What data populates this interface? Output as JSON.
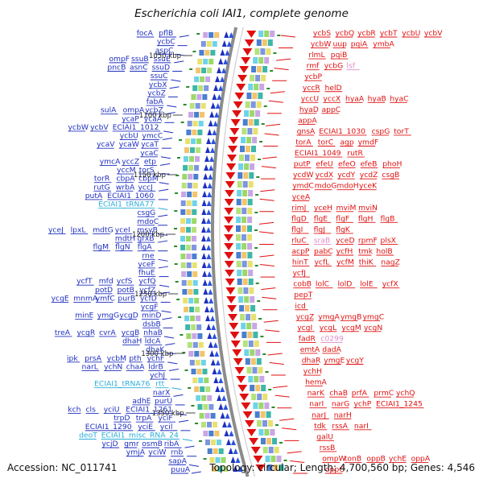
{
  "header": {
    "title": "Escherichia coli IAI1, complete genome"
  },
  "footer": {
    "accession": "Accession: NC_011741",
    "summary": "Topology: circular; Length: 4,700,560 bp; Genes: 4,546"
  },
  "colors": {
    "left_strand": "#1f2fbf",
    "right_strand": "#e01010",
    "rna": "#2aaed8",
    "pseudo": "#e08ac8",
    "backbone": "#8c8c8c"
  },
  "scale_labels": [
    "1050 kbp",
    "1100 kbp",
    "1150 kbp",
    "1200 kbp",
    "1250 kbp",
    "1300 kbp",
    "1350 kbp"
  ],
  "left_genes": [
    [
      "focA",
      "pflB"
    ],
    [
      "ycbC"
    ],
    [
      "aspC"
    ],
    [
      "ompF",
      "ssuB",
      "ssuE"
    ],
    [
      "pncB",
      "asnC",
      "ssuD"
    ],
    [
      "ssuC"
    ],
    [
      "ycbX"
    ],
    [
      "ycbZ"
    ],
    [
      "fabA"
    ],
    [
      "sulA",
      "ompA",
      "ycbZ"
    ],
    [
      "ycaP",
      "ycaA"
    ],
    [
      "ycbW",
      "ycbV",
      "ECIAI1_1012"
    ],
    [
      "ycbU",
      "ymcC"
    ],
    [
      "ycaV",
      "ycaW",
      "ycaT"
    ],
    [
      "ycaC"
    ],
    [
      "ymcA",
      "yccZ",
      "etp"
    ],
    [
      "yccM",
      "torS"
    ],
    [
      "torR",
      "cbpA",
      "cbpM"
    ],
    [
      "rutG",
      "wrbA",
      "yccJ"
    ],
    [
      "putA",
      "ECIAI1_1060"
    ],
    [
      "ECIAI1_tRNA77"
    ],
    [
      "csgG"
    ],
    [
      "mdoC"
    ],
    [
      "yceJ",
      "lpxL",
      "mdtG",
      "yceI",
      "msyB"
    ],
    [
      "mdtH",
      "grxB"
    ],
    [
      "flgM",
      "flgN",
      "flgA"
    ],
    [
      "rne"
    ],
    [
      "yceF"
    ],
    [
      "fhuE"
    ],
    [
      "ycfT",
      "mfd",
      "ycfS",
      "ycfQ"
    ],
    [
      "potD",
      "potB",
      "ycfZ"
    ],
    [
      "ycgE",
      "mnmA",
      "ymfC",
      "purB",
      "ycfD"
    ],
    [
      "ycgF"
    ],
    [
      "minE",
      "ymgG",
      "ycgD",
      "minD"
    ],
    [
      "dsbB"
    ],
    [
      "treA",
      "ycgR",
      "cvrA",
      "ycgB",
      "nhaB"
    ],
    [
      "dhaH",
      "ldcA"
    ],
    [
      "dhaK"
    ],
    [
      "ipk",
      "prsA",
      "ycbM",
      "pth",
      "ychF"
    ],
    [
      "narL",
      "ychN",
      "chaA",
      "ldrB"
    ],
    [
      "ychJ"
    ],
    [
      "ECIAI1_tRNA76",
      "rtt"
    ],
    [
      "narX"
    ],
    [
      "adhE",
      "purU"
    ],
    [
      "kch",
      "cls",
      "yciU",
      "ECIAI1_1261"
    ],
    [
      "trpD",
      "trpA",
      "yciF"
    ],
    [
      "ECIAI1_1290",
      "yciE",
      "ycil"
    ],
    [
      "deoT",
      "ECIAI1_misc_RNA_24"
    ],
    [
      "ycjD",
      "gmr",
      "osmB",
      "ribA"
    ],
    [
      "ymjA",
      "yciW",
      "rnb"
    ],
    [
      "sapA"
    ],
    [
      "puuA"
    ]
  ],
  "right_genes": [
    [
      "ycbS",
      "ycbQ",
      "ycbR",
      "ycbT",
      "ycbU",
      "ycbV"
    ],
    [
      "ycbW",
      "uup",
      "pqiA",
      "ymbA"
    ],
    [
      "rlmL",
      "pqiB"
    ],
    [
      "rmf",
      "ycbG",
      "lsf"
    ],
    [
      "ycbP"
    ],
    [
      "yccR",
      "helD"
    ],
    [
      "yccU",
      "yccX",
      "hyaA",
      "hyaB",
      "hyaC"
    ],
    [
      "hyaD",
      "appC"
    ],
    [
      "appA"
    ],
    [
      "gnsA",
      "ECIAI1_1030",
      "cspG",
      "torT"
    ],
    [
      "torA",
      "torC",
      "agp",
      "ymdF"
    ],
    [
      "ECIAI1_1049",
      "rutR"
    ],
    [
      "putP",
      "efeU",
      "efeO",
      "efeB",
      "phoH"
    ],
    [
      "ycdW",
      "ycdX",
      "ycdY",
      "ycdZ",
      "csgB"
    ],
    [
      "ymdC",
      "mdoG",
      "mdoH",
      "yceK"
    ],
    [
      "yceA"
    ],
    [
      "rimJ",
      "yceH",
      "mviM",
      "mviN"
    ],
    [
      "flgD",
      "flgE",
      "flgF",
      "flgH",
      "flgB"
    ],
    [
      "flgI",
      "flgJ",
      "flgK"
    ],
    [
      "rluC",
      "sraB",
      "yceD",
      "rpmF",
      "plsX"
    ],
    [
      "acpP",
      "pabC",
      "ycfH",
      "tmk",
      "holB"
    ],
    [
      "hinT",
      "ycfL",
      "ycfM",
      "thiK",
      "nagZ"
    ],
    [
      "ycfJ"
    ],
    [
      "cobB",
      "lolC",
      "lolD",
      "lolE",
      "ycfX"
    ],
    [
      "pepT"
    ],
    [
      "icd"
    ],
    [
      "ycgZ",
      "ymgA",
      "ymgB",
      "ymgC"
    ],
    [
      "ycgI",
      "ycgL",
      "ycgM",
      "ycgN"
    ],
    [
      "fadR",
      "c0299"
    ],
    [
      "emtA",
      "dadA"
    ],
    [
      "dhaR",
      "ymgE",
      "ycgY"
    ],
    [
      "ychH"
    ],
    [
      "hemA"
    ],
    [
      "narK",
      "chaB",
      "prfA",
      "prmC",
      "ychQ"
    ],
    [
      "narI",
      "narG",
      "ychP",
      "ECIAI1_1245"
    ],
    [
      "narJ",
      "narH"
    ],
    [
      "tdk",
      "rssA",
      "narI"
    ],
    [
      "galU"
    ],
    [
      "rssB"
    ],
    [
      "ompW",
      "tonB",
      "oppB",
      "ychE",
      "oppA"
    ],
    [
      "oppC"
    ]
  ]
}
